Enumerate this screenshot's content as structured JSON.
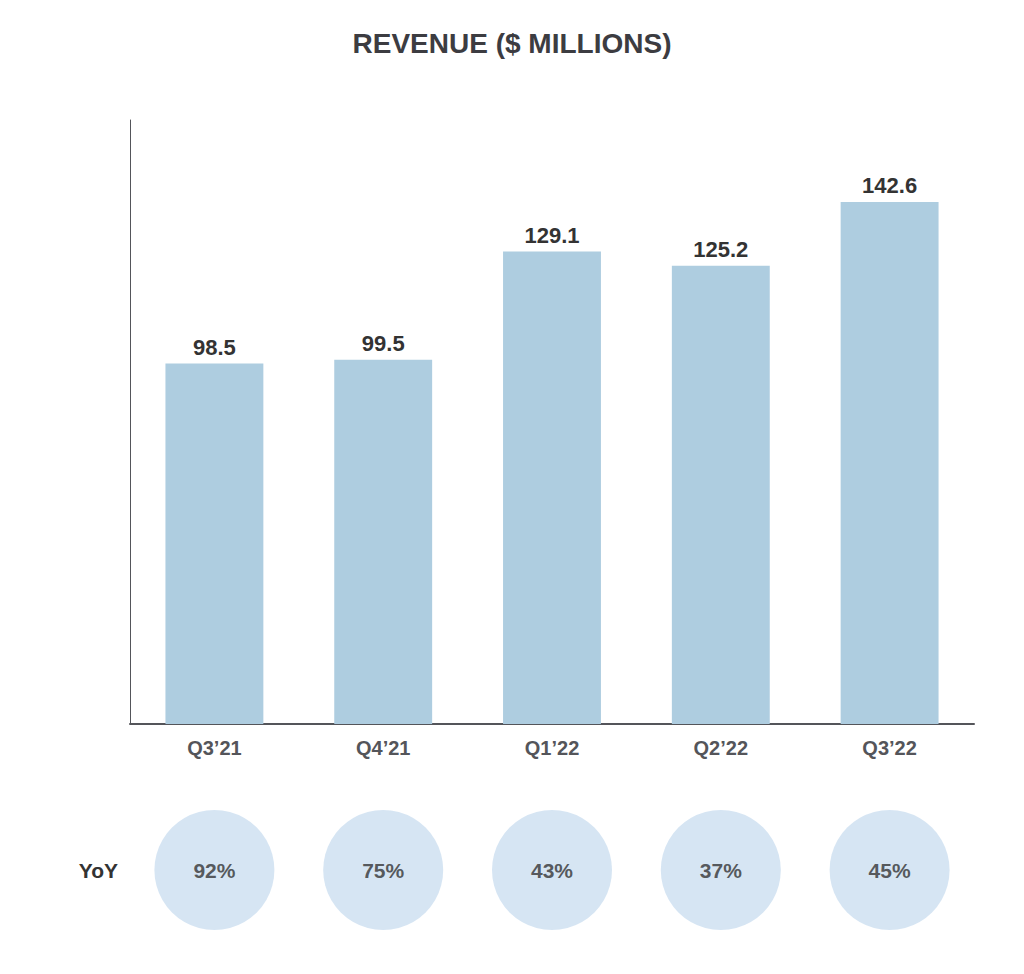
{
  "chart_data": {
    "type": "bar",
    "title": "REVENUE ($ MILLIONS)",
    "categories": [
      "Q3’21",
      "Q4’21",
      "Q1’22",
      "Q2’22",
      "Q3’22"
    ],
    "values": [
      98.5,
      99.5,
      129.1,
      125.2,
      142.6
    ],
    "color": "#aecde0",
    "ylim": [
      0,
      165
    ],
    "data_labels": true,
    "tick_labels": "x",
    "grid": false,
    "yoy_label": "YoY",
    "yoy_values": [
      92,
      75,
      43,
      37,
      45
    ],
    "yoy_value_labels": [
      "92%",
      "75%",
      "43%",
      "37%",
      "45%"
    ],
    "yoy_color": "#ccdff0"
  }
}
